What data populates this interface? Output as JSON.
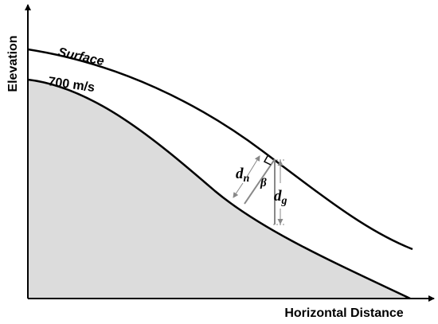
{
  "axes": {
    "y_label": "Elevation",
    "x_label": "Horizontal Distance"
  },
  "curves": {
    "surface": "Surface",
    "velocity": "700 m/s"
  },
  "symbols": {
    "dn": {
      "main": "d",
      "sub": "n"
    },
    "beta": "β",
    "dg": {
      "main": "d",
      "sub": "g"
    }
  }
}
